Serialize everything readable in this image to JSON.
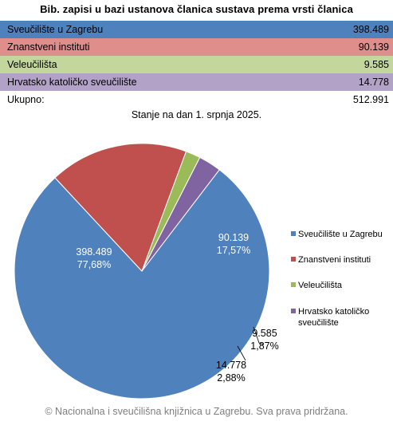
{
  "title": "Bib. zapisi u bazi ustanova članica sustava prema vrsti članica",
  "table": {
    "rows": [
      {
        "label": "Sveučilište u Zagrebu",
        "value": "398.489",
        "color": "#4f81bd"
      },
      {
        "label": "Znanstveni instituti",
        "value": "90.139",
        "color": "#e08e8c"
      },
      {
        "label": "Veleučilišta",
        "value": "9.585",
        "color": "#c3d69b"
      },
      {
        "label": "Hrvatsko katoličko sveučilište",
        "value": "14.778",
        "color": "#b3a2c7"
      }
    ],
    "total": {
      "label": "Ukupno:",
      "value": "512.991"
    }
  },
  "subtitle": "Stanje na dan 1. srpnja 2025.",
  "chart_data": {
    "type": "pie",
    "slices": [
      {
        "name": "Sveučilište u Zagrebu",
        "value": 398489,
        "value_label": "398.489",
        "percent_label": "77,68%",
        "color": "#4f81bd"
      },
      {
        "name": "Znanstveni instituti",
        "value": 90139,
        "value_label": "90.139",
        "percent_label": "17,57%",
        "color": "#c0504d"
      },
      {
        "name": "Veleučilišta",
        "value": 9585,
        "value_label": "9.585",
        "percent_label": "1,87%",
        "color": "#9bbb59"
      },
      {
        "name": "Hrvatsko katoličko sveučilište",
        "value": 14778,
        "value_label": "14.778",
        "percent_label": "2,88%",
        "color": "#8064a2"
      }
    ],
    "legend": {
      "placement": "right",
      "entries": [
        "Sveučilište u Zagrebu",
        "Znanstveni instituti",
        "Veleučilišta",
        "Hrvatsko katoličko sveučilište"
      ]
    }
  },
  "footer": "© Nacionalna i sveučilišna knjižnica u Zagrebu. Sva prava pridržana."
}
